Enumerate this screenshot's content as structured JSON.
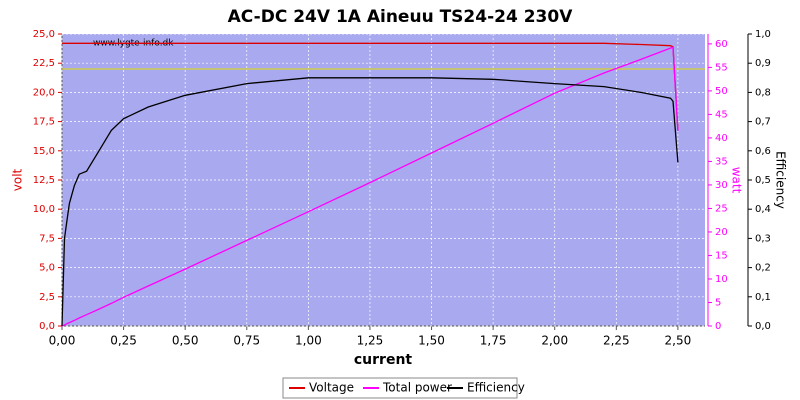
{
  "chart_data": {
    "type": "line",
    "title": "AC-DC 24V 1A Aineuu TS24-24 230V",
    "watermark": "www.lygte-info.dk",
    "x_label": "current",
    "y_label": "volt",
    "y2_label": "watt",
    "y3_label": "Efficiency",
    "x": [
      0,
      0.01,
      0.02,
      0.03,
      0.05,
      0.07,
      0.1,
      0.15,
      0.2,
      0.25,
      0.35,
      0.5,
      0.75,
      1.0,
      1.25,
      1.5,
      1.75,
      2.0,
      2.2,
      2.35,
      2.47,
      2.48,
      2.5
    ],
    "series": [
      {
        "name": "Voltage",
        "color": "#dd0000",
        "axis": "y",
        "values": [
          24.2,
          24.2,
          24.2,
          24.2,
          24.2,
          24.2,
          24.2,
          24.2,
          24.2,
          24.2,
          24.2,
          24.2,
          24.2,
          24.2,
          24.2,
          24.2,
          24.2,
          24.2,
          24.2,
          24.1,
          24.0,
          23.9,
          16.8
        ]
      },
      {
        "name": "Total power",
        "color": "#ff00ff",
        "axis": "y2",
        "values": [
          0,
          0.24,
          0.48,
          0.73,
          1.2,
          1.7,
          2.4,
          3.6,
          4.8,
          6.1,
          8.5,
          12.1,
          18.2,
          24.3,
          30.5,
          36.8,
          43.1,
          49.5,
          53.8,
          56.7,
          59.1,
          59.3,
          41.5
        ]
      },
      {
        "name": "Efficiency",
        "color": "#000000",
        "axis": "y3",
        "values": [
          0,
          0.3,
          0.36,
          0.42,
          0.48,
          0.52,
          0.53,
          0.6,
          0.67,
          0.71,
          0.75,
          0.79,
          0.83,
          0.85,
          0.85,
          0.85,
          0.845,
          0.83,
          0.82,
          0.8,
          0.78,
          0.77,
          0.56
        ]
      }
    ],
    "reference_lines": [
      {
        "value": 22,
        "color": "#dddd00"
      }
    ],
    "xlim": [
      0,
      2.61
    ],
    "xticks": [
      {
        "value": 0,
        "label": "0,00"
      },
      {
        "value": 0.25,
        "label": "0,25"
      },
      {
        "value": 0.5,
        "label": "0,50"
      },
      {
        "value": 0.75,
        "label": "0,75"
      },
      {
        "value": 1,
        "label": "1,00"
      },
      {
        "value": 1.25,
        "label": "1,25"
      },
      {
        "value": 1.5,
        "label": "1,50"
      },
      {
        "value": 1.75,
        "label": "1,75"
      },
      {
        "value": 2,
        "label": "2,00"
      },
      {
        "value": 2.25,
        "label": "2,25"
      },
      {
        "value": 2.5,
        "label": "2,50"
      }
    ],
    "ylim": [
      0,
      25
    ],
    "yticks": [
      {
        "value": 0,
        "label": "0,0"
      },
      {
        "value": 2.5,
        "label": "2,5"
      },
      {
        "value": 5,
        "label": "5,0"
      },
      {
        "value": 7.5,
        "label": "7,5"
      },
      {
        "value": 10,
        "label": "10,0"
      },
      {
        "value": 12.5,
        "label": "12,5"
      },
      {
        "value": 15,
        "label": "15,0"
      },
      {
        "value": 17.5,
        "label": "17,5"
      },
      {
        "value": 20,
        "label": "20,0"
      },
      {
        "value": 22.5,
        "label": "22,5"
      },
      {
        "value": 25,
        "label": "25,0"
      }
    ],
    "y2lim": [
      0,
      62.1
    ],
    "y2ticks": [
      0,
      5,
      10,
      15,
      20,
      25,
      30,
      35,
      40,
      45,
      50,
      55,
      60
    ],
    "y3lim": [
      0,
      1
    ],
    "y3ticks": [
      {
        "value": 0,
        "label": "0,0"
      },
      {
        "value": 0.1,
        "label": "0,1"
      },
      {
        "value": 0.2,
        "label": "0,2"
      },
      {
        "value": 0.3,
        "label": "0,3"
      },
      {
        "value": 0.4,
        "label": "0,4"
      },
      {
        "value": 0.5,
        "label": "0,5"
      },
      {
        "value": 0.6,
        "label": "0,6"
      },
      {
        "value": 0.7,
        "label": "0,7"
      },
      {
        "value": 0.8,
        "label": "0,8"
      },
      {
        "value": 0.9,
        "label": "0,9"
      },
      {
        "value": 1,
        "label": "1,0"
      }
    ],
    "grid": true
  }
}
